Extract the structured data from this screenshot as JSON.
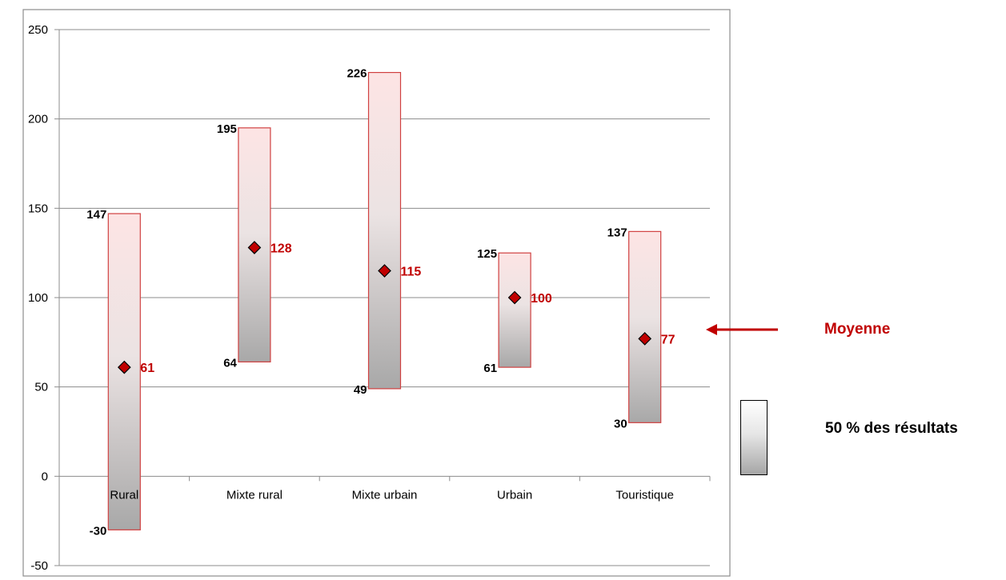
{
  "chart_data": {
    "type": "floating-bar",
    "title": "",
    "xlabel": "",
    "ylabel": "",
    "ylim": [
      -50,
      250
    ],
    "yticks": [
      -50,
      0,
      50,
      100,
      150,
      200,
      250
    ],
    "grid": true,
    "categories": [
      "Rural",
      "Mixte rural",
      "Mixte urbain",
      "Urbain",
      "Touristique"
    ],
    "series": [
      {
        "name": "50 % des résultats",
        "low": [
          -30,
          64,
          49,
          61,
          30
        ],
        "high": [
          147,
          195,
          226,
          125,
          137
        ]
      },
      {
        "name": "Moyenne",
        "values": [
          61,
          128,
          115,
          100,
          77
        ]
      }
    ],
    "colors": {
      "accent": "#c00000",
      "bar_border": "#d04040",
      "bar_top": "#fde4e4",
      "bar_bottom": "#a8a8a8",
      "gridline": "#8c8c8c"
    }
  },
  "legend": {
    "mean_label": "Moyenne",
    "range_label": "50 % des résultats"
  }
}
